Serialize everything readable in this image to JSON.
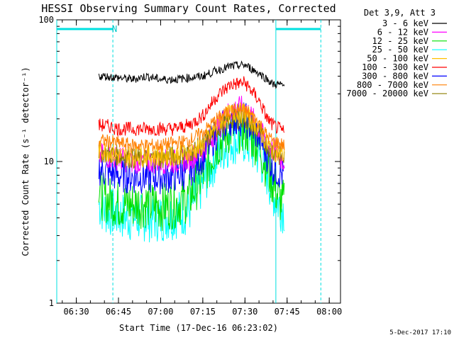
{
  "chart_data": {
    "type": "line",
    "title": "HESSI Observing Summary Count Rates, Corrected",
    "xlabel": "Start Time (17-Dec-16 06:23:02)",
    "ylabel": "Corrected Count Rate (s⁻¹ detector⁻¹)",
    "yscale": "log",
    "ylim": [
      1,
      100
    ],
    "xlim": [
      "06:23:02",
      "08:04:00"
    ],
    "x_ticks": [
      "06:30",
      "06:45",
      "07:00",
      "07:15",
      "07:30",
      "07:45",
      "08:00"
    ],
    "y_ticks": [
      "1",
      "10",
      "100"
    ],
    "grid": false,
    "legend_position": "top-right outside",
    "legend_header": "Det 3,9, Att 3",
    "annotation_n": "N",
    "footer_date": "5-Dec-2017 17:10",
    "night_intervals": [
      [
        "06:23:02",
        "06:43:00"
      ],
      [
        "07:41:00",
        "07:57:00"
      ]
    ],
    "x": [
      "06:38",
      "06:40",
      "06:45",
      "06:50",
      "06:55",
      "07:00",
      "07:05",
      "07:10",
      "07:15",
      "07:20",
      "07:25",
      "07:30",
      "07:35",
      "07:38",
      "07:40",
      "07:42",
      "07:44"
    ],
    "series": [
      {
        "name": "3 - 6 keV",
        "color": "#000000",
        "values": [
          40,
          40,
          39,
          38,
          40,
          38,
          38,
          39,
          40,
          44,
          47,
          48,
          42,
          38,
          35,
          35,
          34
        ]
      },
      {
        "name": "6 - 12 keV",
        "color": "#ff00ff",
        "values": [
          11,
          11,
          10.5,
          10,
          10,
          10,
          10,
          10.5,
          12,
          17,
          23,
          24,
          17,
          13,
          12,
          11,
          10
        ]
      },
      {
        "name": "12 - 25 keV",
        "color": "#00e000",
        "values": [
          6,
          5.5,
          5,
          5,
          5,
          4.8,
          5,
          5.5,
          8,
          13,
          17,
          17,
          13,
          9,
          7,
          5.5,
          5
        ]
      },
      {
        "name": "25 - 50 keV",
        "color": "#00ffff",
        "values": [
          5,
          4.5,
          4.2,
          4,
          4,
          4,
          4.2,
          4.5,
          7,
          11,
          14,
          14,
          11,
          8,
          6,
          5,
          4.5
        ]
      },
      {
        "name": "50 - 100 keV",
        "color": "#ffc000",
        "values": [
          12,
          12,
          11,
          11,
          11,
          11,
          11,
          11.5,
          13,
          18,
          22,
          22,
          17,
          13,
          12,
          11.5,
          11
        ]
      },
      {
        "name": "100 - 300 keV",
        "color": "#ff0000",
        "values": [
          18,
          18,
          17,
          17,
          17,
          17,
          17,
          18,
          21,
          29,
          35,
          36,
          27,
          20,
          18,
          17,
          16
        ]
      },
      {
        "name": "300 - 800 keV",
        "color": "#0000ff",
        "values": [
          9,
          8.5,
          8,
          7.8,
          7.8,
          7.8,
          8,
          8.5,
          11,
          16,
          20,
          20,
          15,
          11,
          9,
          8.5,
          8
        ]
      },
      {
        "name": "800 - 7000 keV",
        "color": "#ff7f00",
        "values": [
          14,
          14,
          13.5,
          13,
          13,
          13,
          13.5,
          14,
          16,
          20,
          23,
          23,
          19,
          15,
          14,
          13.5,
          13
        ]
      },
      {
        "name": "7000 - 20000 keV",
        "color": "#8b7d00",
        "values": [
          12,
          11.5,
          11,
          10.5,
          10.5,
          10.5,
          11,
          11.5,
          13,
          17,
          20,
          20,
          16,
          13,
          12,
          11,
          10.5
        ]
      }
    ]
  }
}
